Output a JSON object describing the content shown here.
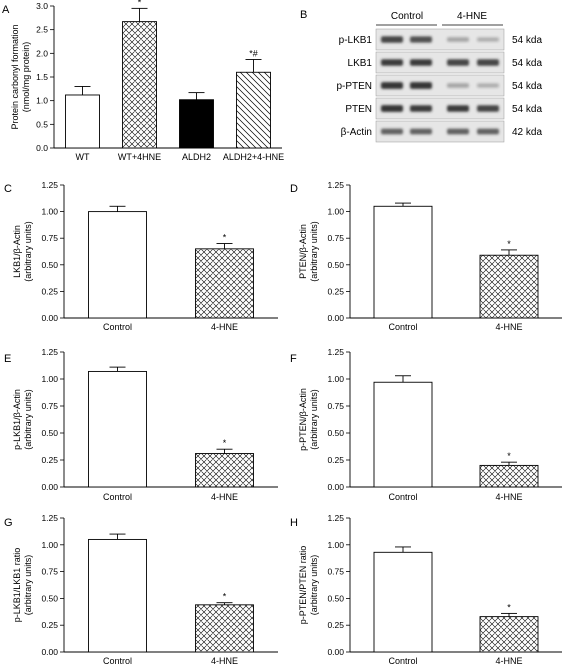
{
  "colors": {
    "axis": "#000000",
    "bar_fill_white": "#ffffff",
    "bar_fill_black": "#000000",
    "hatch": "#000000",
    "blot_band": "#2a2a2a",
    "blot_bg": "#e6e6e6"
  },
  "panels": {
    "A": {
      "letter": "A"
    },
    "B": {
      "letter": "B",
      "group_labels": [
        "Control",
        "4-HNE"
      ],
      "rows": [
        {
          "protein": "p-LKB1",
          "size": "54 kda",
          "band_intensity": [
            0.85,
            0.8,
            0.35,
            0.3
          ]
        },
        {
          "protein": "LKB1",
          "size": "54 kda",
          "band_intensity": [
            0.9,
            0.9,
            0.85,
            0.85
          ]
        },
        {
          "protein": "p-PTEN",
          "size": "54 kda",
          "band_intensity": [
            0.95,
            0.95,
            0.35,
            0.3
          ]
        },
        {
          "protein": "PTEN",
          "size": "54 kda",
          "band_intensity": [
            0.95,
            0.9,
            0.9,
            0.85
          ]
        },
        {
          "protein": "β-Actin",
          "size": "42 kda",
          "band_intensity": [
            0.7,
            0.7,
            0.7,
            0.7
          ]
        }
      ]
    },
    "C": {
      "letter": "C"
    },
    "D": {
      "letter": "D"
    },
    "E": {
      "letter": "E"
    },
    "F": {
      "letter": "F"
    },
    "G": {
      "letter": "G"
    },
    "H": {
      "letter": "H"
    }
  },
  "chart_data": [
    {
      "panel": "A",
      "type": "bar",
      "categories": [
        "WT",
        "WT+4HNE",
        "ALDH2",
        "ALDH2+4-HNE"
      ],
      "values": [
        1.12,
        2.67,
        1.02,
        1.6
      ],
      "errors": [
        0.18,
        0.28,
        0.15,
        0.27
      ],
      "annotations": [
        "",
        "*",
        "",
        "*#"
      ],
      "fills": [
        "white",
        "crosshatch",
        "black",
        "diagonal"
      ],
      "ylabel_lines": [
        "Protein carbonyl formation",
        "(nmol/mg protein)"
      ],
      "ylim": [
        0,
        3
      ],
      "yticks": [
        "0.0",
        "0.5",
        "1.0",
        "1.5",
        "2.0",
        "2.5",
        "3.0"
      ]
    },
    {
      "panel": "C",
      "type": "bar",
      "categories": [
        "Control",
        "4-HNE"
      ],
      "values": [
        1.0,
        0.65
      ],
      "errors": [
        0.05,
        0.05
      ],
      "annotations": [
        "",
        "*"
      ],
      "fills": [
        "white",
        "crosshatch"
      ],
      "ylabel_lines": [
        "LKB1/β-Actin",
        "(arbitrary units)"
      ],
      "ylim": [
        0,
        1.25
      ],
      "yticks": [
        "0.00",
        "0.25",
        "0.50",
        "0.75",
        "1.00",
        "1.25"
      ]
    },
    {
      "panel": "D",
      "type": "bar",
      "categories": [
        "Control",
        "4-HNE"
      ],
      "values": [
        1.05,
        0.59
      ],
      "errors": [
        0.03,
        0.05
      ],
      "annotations": [
        "",
        "*"
      ],
      "fills": [
        "white",
        "crosshatch"
      ],
      "ylabel_lines": [
        "PTEN/β-Actin",
        "(arbitrary units)"
      ],
      "ylim": [
        0,
        1.25
      ],
      "yticks": [
        "0.00",
        "0.25",
        "0.50",
        "0.75",
        "1.00",
        "1.25"
      ]
    },
    {
      "panel": "E",
      "type": "bar",
      "categories": [
        "Control",
        "4-HNE"
      ],
      "values": [
        1.07,
        0.31
      ],
      "errors": [
        0.04,
        0.04
      ],
      "annotations": [
        "",
        "*"
      ],
      "fills": [
        "white",
        "crosshatch"
      ],
      "ylabel_lines": [
        "p-LKB1/β-Actin",
        "(arbitrary units)"
      ],
      "ylim": [
        0,
        1.25
      ],
      "yticks": [
        "0.00",
        "0.25",
        "0.50",
        "0.75",
        "1.00",
        "1.25"
      ]
    },
    {
      "panel": "F",
      "type": "bar",
      "categories": [
        "Control",
        "4-HNE"
      ],
      "values": [
        0.97,
        0.2
      ],
      "errors": [
        0.06,
        0.03
      ],
      "annotations": [
        "",
        "*"
      ],
      "fills": [
        "white",
        "crosshatch"
      ],
      "ylabel_lines": [
        "p-PTEN/β-Actin",
        "(arbitrary units)"
      ],
      "ylim": [
        0,
        1.25
      ],
      "yticks": [
        "0.00",
        "0.25",
        "0.50",
        "0.75",
        "1.00",
        "1.25"
      ]
    },
    {
      "panel": "G",
      "type": "bar",
      "categories": [
        "Control",
        "4-HNE"
      ],
      "values": [
        1.05,
        0.44
      ],
      "errors": [
        0.05,
        0.02
      ],
      "annotations": [
        "",
        "*"
      ],
      "fills": [
        "white",
        "crosshatch"
      ],
      "ylabel_lines": [
        "p-LKB1/LKB1 ratio",
        "(arbitrary units)"
      ],
      "ylim": [
        0,
        1.25
      ],
      "yticks": [
        "0.00",
        "0.25",
        "0.50",
        "0.75",
        "1.00",
        "1.25"
      ]
    },
    {
      "panel": "H",
      "type": "bar",
      "categories": [
        "Control",
        "4-HNE"
      ],
      "values": [
        0.93,
        0.33
      ],
      "errors": [
        0.05,
        0.03
      ],
      "annotations": [
        "",
        "*"
      ],
      "fills": [
        "white",
        "crosshatch"
      ],
      "ylabel_lines": [
        "p-PTEN/PTEN ratio",
        "(arbitrary units)"
      ],
      "ylim": [
        0,
        1.25
      ],
      "yticks": [
        "0.00",
        "0.25",
        "0.50",
        "0.75",
        "1.00",
        "1.25"
      ]
    }
  ]
}
